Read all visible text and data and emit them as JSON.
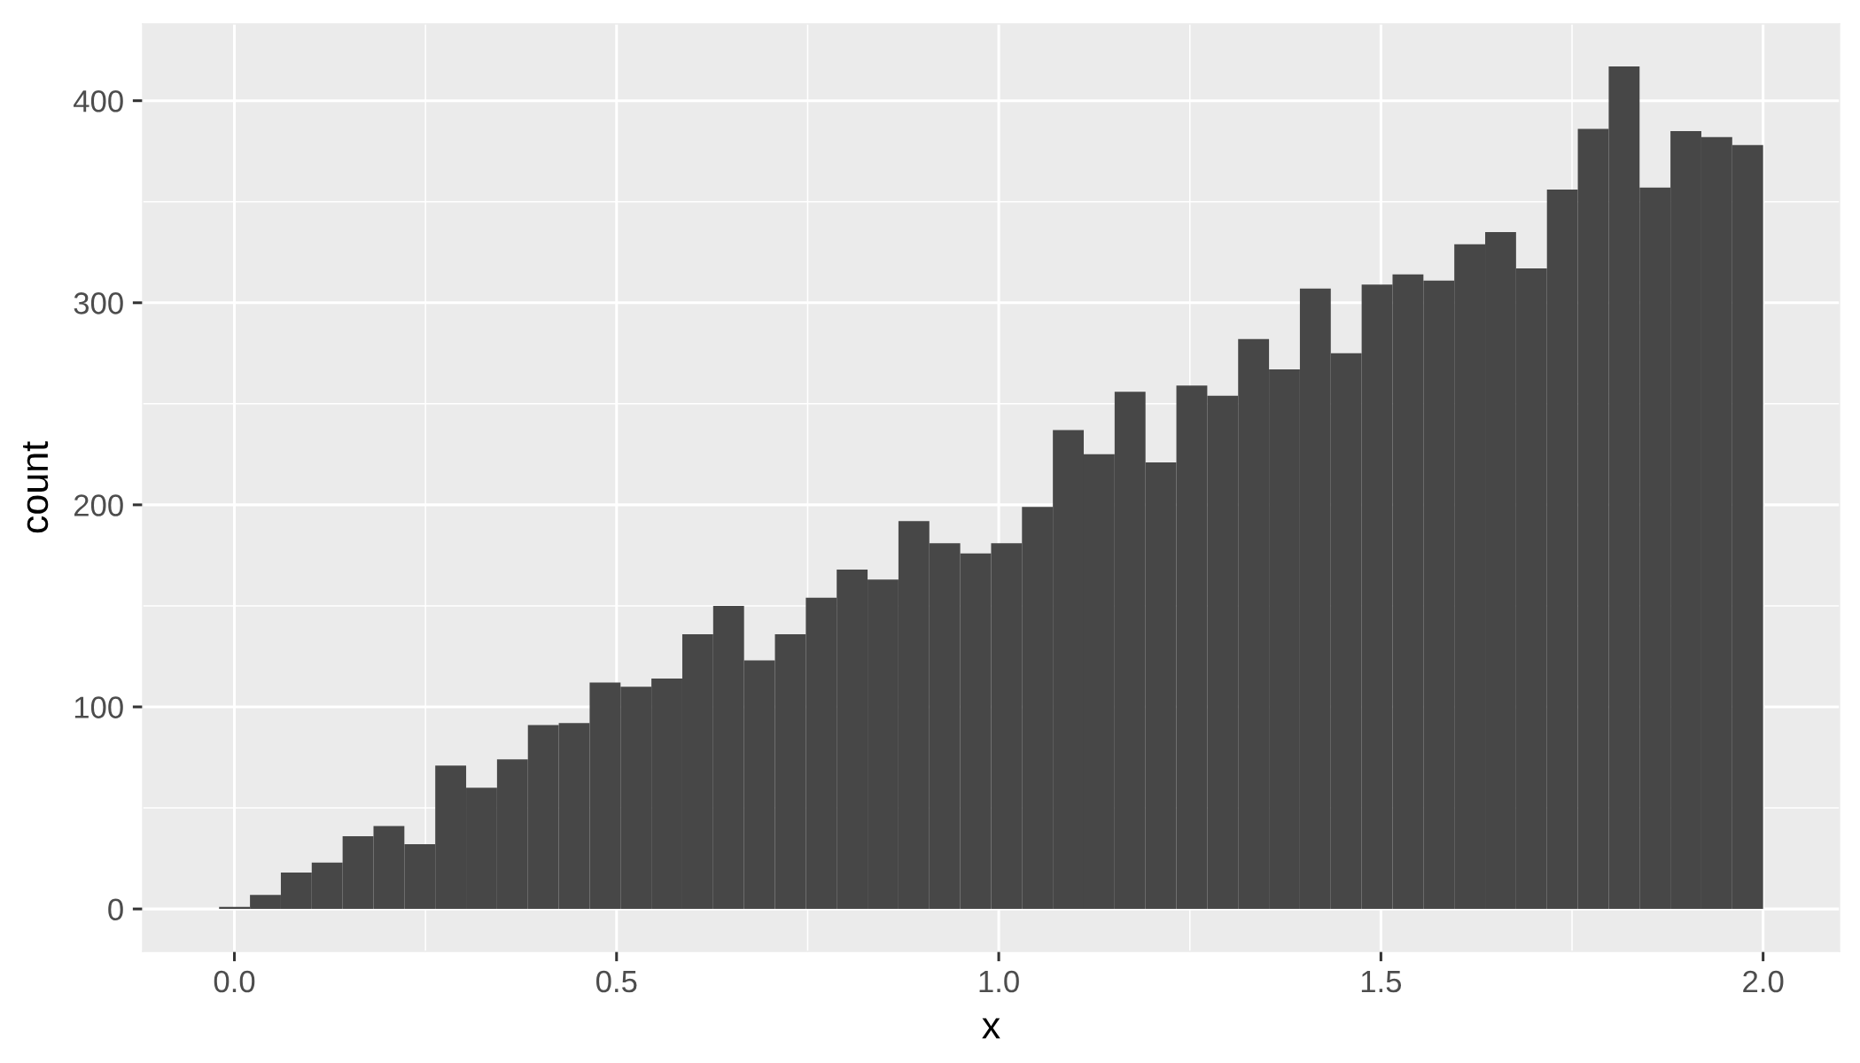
{
  "chart_data": {
    "type": "histogram",
    "xlabel": "x",
    "ylabel": "count",
    "bins": [
      -0.02,
      0.0204,
      0.0608,
      0.1012,
      0.1416,
      0.182,
      0.2224,
      0.2628,
      0.3032,
      0.3436,
      0.384,
      0.4244,
      0.4648,
      0.5052,
      0.5456,
      0.586,
      0.6264,
      0.6668,
      0.7072,
      0.7476,
      0.788,
      0.8284,
      0.8688,
      0.9092,
      0.9496,
      0.99,
      1.0304,
      1.0708,
      1.1112,
      1.1516,
      1.192,
      1.2324,
      1.2728,
      1.3132,
      1.3536,
      1.394,
      1.4344,
      1.4748,
      1.5152,
      1.5556,
      1.596,
      1.6364,
      1.6768,
      1.7172,
      1.7576,
      1.798,
      1.8384,
      1.8788,
      1.9192,
      1.9596,
      2.0
    ],
    "values": [
      1,
      7,
      18,
      23,
      36,
      41,
      32,
      71,
      60,
      74,
      91,
      92,
      112,
      110,
      114,
      136,
      150,
      123,
      136,
      154,
      168,
      163,
      192,
      181,
      176,
      181,
      199,
      237,
      225,
      256,
      221,
      259,
      254,
      282,
      267,
      307,
      275,
      309,
      314,
      311,
      329,
      335,
      317,
      356,
      386,
      417,
      357,
      385,
      382,
      378
    ],
    "color": "#474747",
    "xlim": [
      -0.12,
      2.1
    ],
    "ylim": [
      -21,
      438
    ],
    "xticks": [
      {
        "value": 0,
        "label": "0.0"
      },
      {
        "value": 0.5,
        "label": "0.5"
      },
      {
        "value": 1,
        "label": "1.0"
      },
      {
        "value": 1.5,
        "label": "1.5"
      },
      {
        "value": 2,
        "label": "2.0"
      }
    ],
    "yticks": [
      0,
      100,
      200,
      300,
      400
    ],
    "grid": true
  }
}
